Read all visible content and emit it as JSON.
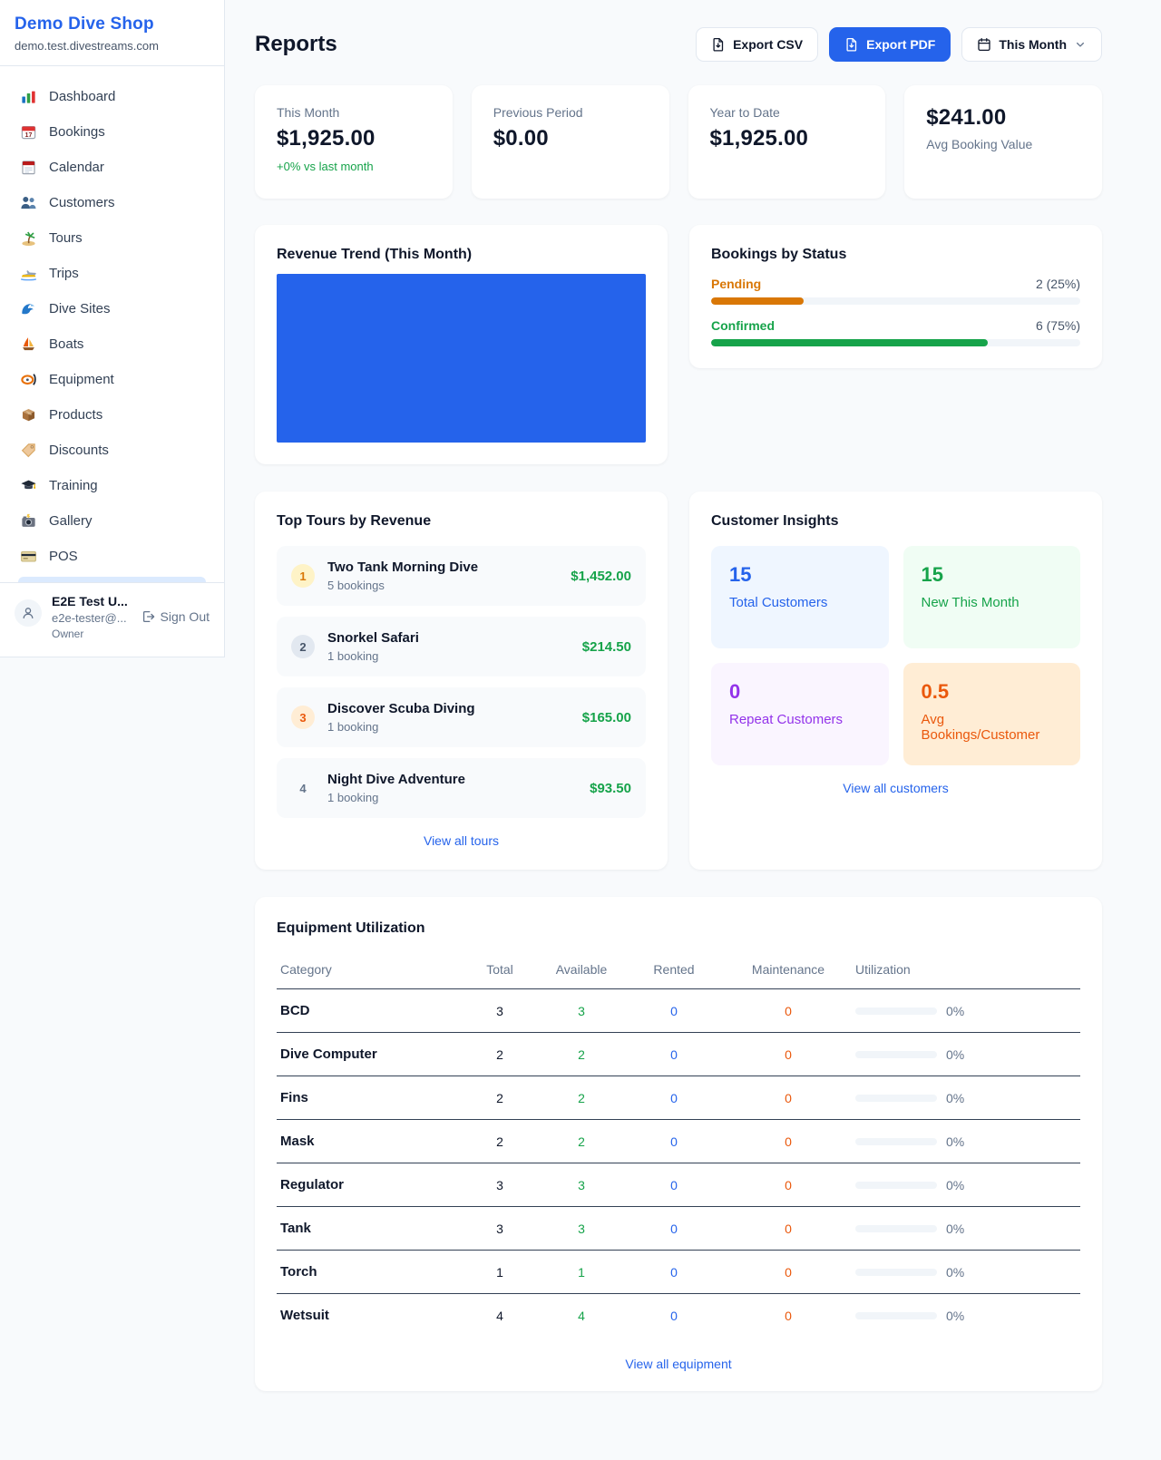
{
  "colors": {
    "accent_blue": "#2563eb",
    "green": "#16a34a",
    "pending_orange": "#d97706",
    "maintenance_orange": "#ea580c",
    "purple": "#9333ea",
    "background": "#f8fafc"
  },
  "sidebar": {
    "brand": {
      "name": "Demo Dive Shop",
      "domain": "demo.test.divestreams.com"
    },
    "items": [
      {
        "icon": "bar-chart-icon",
        "label": "Dashboard"
      },
      {
        "icon": "calendar-date-icon",
        "label": "Bookings"
      },
      {
        "icon": "notepad-calendar-icon",
        "label": "Calendar"
      },
      {
        "icon": "people-icon",
        "label": "Customers"
      },
      {
        "icon": "palm-island-icon",
        "label": "Tours"
      },
      {
        "icon": "speedboat-icon",
        "label": "Trips"
      },
      {
        "icon": "wave-icon",
        "label": "Dive Sites"
      },
      {
        "icon": "sailboat-icon",
        "label": "Boats"
      },
      {
        "icon": "dive-mask-icon",
        "label": "Equipment"
      },
      {
        "icon": "package-icon",
        "label": "Products"
      },
      {
        "icon": "tag-icon",
        "label": "Discounts"
      },
      {
        "icon": "graduation-cap-icon",
        "label": "Training"
      },
      {
        "icon": "camera-icon",
        "label": "Gallery"
      },
      {
        "icon": "credit-card-icon",
        "label": "POS"
      }
    ],
    "user": {
      "name": "E2E Test U...",
      "email": "e2e-tester@...",
      "role": "Owner",
      "sign_out": "Sign Out"
    }
  },
  "header": {
    "title": "Reports",
    "export_csv": "Export CSV",
    "export_pdf": "Export PDF",
    "period": "This Month"
  },
  "stats": [
    {
      "label": "This Month",
      "value": "$1,925.00",
      "delta": "+0% vs last month"
    },
    {
      "label": "Previous Period",
      "value": "$0.00"
    },
    {
      "label": "Year to Date",
      "value": "$1,925.00"
    },
    {
      "label": "Avg Booking Value",
      "value": "$241.00"
    }
  ],
  "revenue_trend": {
    "title": "Revenue Trend (This Month)"
  },
  "chart_data": [
    {
      "type": "bar",
      "title": "Revenue Trend (This Month)",
      "categories": [
        "This Month"
      ],
      "values": [
        1925
      ],
      "bar_color": "#2563eb",
      "note_axes": "no axes or tick labels shown; single full-width bar"
    },
    {
      "type": "bar",
      "title": "Bookings by Status",
      "categories": [
        "Pending",
        "Confirmed"
      ],
      "values": [
        2,
        6
      ],
      "percentages": [
        25,
        75
      ],
      "colors": [
        "#d97706",
        "#16a34a"
      ]
    }
  ],
  "bookings_by_status": {
    "title": "Bookings by Status",
    "rows": [
      {
        "label": "Pending",
        "value": "2 (25%)",
        "pct": 25
      },
      {
        "label": "Confirmed",
        "value": "6 (75%)",
        "pct": 75
      }
    ]
  },
  "top_tours": {
    "title": "Top Tours by Revenue",
    "items": [
      {
        "rank": "1",
        "name": "Two Tank Morning Dive",
        "bookings": "5 bookings",
        "amount": "$1,452.00"
      },
      {
        "rank": "2",
        "name": "Snorkel Safari",
        "bookings": "1 booking",
        "amount": "$214.50"
      },
      {
        "rank": "3",
        "name": "Discover Scuba Diving",
        "bookings": "1 booking",
        "amount": "$165.00"
      },
      {
        "rank": "4",
        "name": "Night Dive Adventure",
        "bookings": "1 booking",
        "amount": "$93.50"
      }
    ],
    "view_all": "View all tours"
  },
  "customer_insights": {
    "title": "Customer Insights",
    "tiles": [
      {
        "value": "15",
        "label": "Total Customers",
        "theme": "blue"
      },
      {
        "value": "15",
        "label": "New This Month",
        "theme": "green"
      },
      {
        "value": "0",
        "label": "Repeat Customers",
        "theme": "purple"
      },
      {
        "value": "0.5",
        "label": "Avg Bookings/Customer",
        "theme": "orange"
      }
    ],
    "view_all": "View all customers"
  },
  "equipment": {
    "title": "Equipment Utilization",
    "columns": [
      "Category",
      "Total",
      "Available",
      "Rented",
      "Maintenance",
      "Utilization"
    ],
    "rows": [
      {
        "category": "BCD",
        "total": "3",
        "available": "3",
        "rented": "0",
        "maintenance": "0",
        "utilization": "0%"
      },
      {
        "category": "Dive Computer",
        "total": "2",
        "available": "2",
        "rented": "0",
        "maintenance": "0",
        "utilization": "0%"
      },
      {
        "category": "Fins",
        "total": "2",
        "available": "2",
        "rented": "0",
        "maintenance": "0",
        "utilization": "0%"
      },
      {
        "category": "Mask",
        "total": "2",
        "available": "2",
        "rented": "0",
        "maintenance": "0",
        "utilization": "0%"
      },
      {
        "category": "Regulator",
        "total": "3",
        "available": "3",
        "rented": "0",
        "maintenance": "0",
        "utilization": "0%"
      },
      {
        "category": "Tank",
        "total": "3",
        "available": "3",
        "rented": "0",
        "maintenance": "0",
        "utilization": "0%"
      },
      {
        "category": "Torch",
        "total": "1",
        "available": "1",
        "rented": "0",
        "maintenance": "0",
        "utilization": "0%"
      },
      {
        "category": "Wetsuit",
        "total": "4",
        "available": "4",
        "rented": "0",
        "maintenance": "0",
        "utilization": "0%"
      }
    ],
    "view_all": "View all equipment"
  }
}
